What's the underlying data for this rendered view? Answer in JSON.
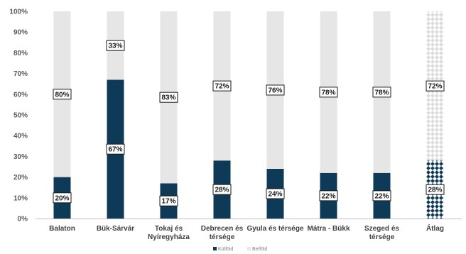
{
  "chart_data": {
    "type": "bar",
    "stacked": true,
    "percent": true,
    "categories": [
      [
        "Balaton"
      ],
      [
        "Bük-Sárvár"
      ],
      [
        "Tokaj és",
        "Nyíregyháza"
      ],
      [
        "Debrecen és",
        "térsége"
      ],
      [
        "Gyula és térsége"
      ],
      [
        "Mátra - Bükk"
      ],
      [
        "Szeged és",
        "térsége"
      ],
      [
        "Átlag"
      ]
    ],
    "series": [
      {
        "name": "Külföld",
        "values": [
          20,
          67,
          17,
          28,
          24,
          22,
          22,
          28
        ],
        "labels": [
          "20%",
          "67%",
          "17%",
          "28%",
          "24%",
          "22%",
          "22%",
          "28%"
        ],
        "color": "#0e3a57"
      },
      {
        "name": "Belföld",
        "values": [
          80,
          33,
          83,
          72,
          76,
          78,
          78,
          72
        ],
        "labels": [
          "80%",
          "33%",
          "83%",
          "72%",
          "76%",
          "78%",
          "78%",
          "72%"
        ],
        "color": "#e6e6e6"
      }
    ],
    "patterned_category_index": 7,
    "yticks": [
      "0%",
      "10%",
      "20%",
      "30%",
      "40%",
      "50%",
      "60%",
      "70%",
      "80%",
      "90%",
      "100%"
    ],
    "ylim": [
      0,
      100
    ],
    "grid": false,
    "legend_position": "bottom"
  }
}
